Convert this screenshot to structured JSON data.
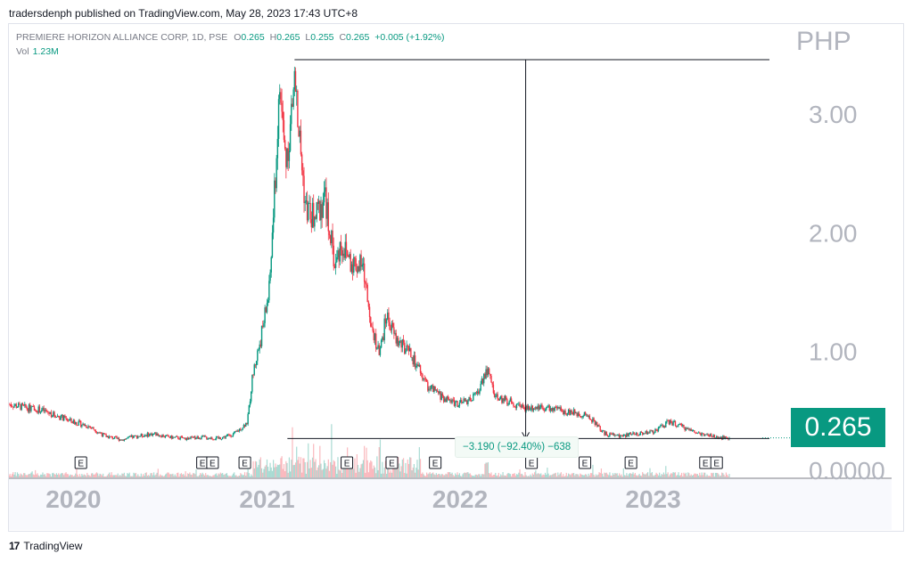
{
  "header": {
    "published_text": "tradersdenph published on TradingView.com, May 28, 2023 17:43 UTC+8"
  },
  "legend": {
    "symbol": "PREMIERE HORIZON ALLIANCE CORP, 1D, PSE",
    "open_key": "O",
    "open": "0.265",
    "high_key": "H",
    "high": "0.265",
    "low_key": "L",
    "low": "0.255",
    "close_key": "C",
    "close": "0.265",
    "change": "+0.005 (+1.92%)",
    "vol_key": "Vol",
    "vol": "1.23M"
  },
  "currency": "PHP",
  "last_price_tag": "0.265",
  "measure_label": "−3.190 (−92.40%) −638",
  "earnings_label": "E",
  "footer": {
    "brand": "TradingView",
    "logo_icon": "tradingview-logo-icon"
  },
  "colors": {
    "up": "#089981",
    "down": "#f23645",
    "axis_text": "#b2b5be",
    "price_tag_bg": "#089981"
  },
  "chart_data": {
    "type": "candlestick",
    "symbol": "PREMIERE HORIZON ALLIANCE CORP",
    "interval": "1D",
    "exchange": "PSE",
    "x_range": [
      "2019-09-01",
      "2023-09-15"
    ],
    "y_range": [
      0,
      3.6
    ],
    "y_ticks": [
      {
        "value": 3.0,
        "label": "3.00"
      },
      {
        "value": 2.0,
        "label": "2.00"
      },
      {
        "value": 1.0,
        "label": "1.00"
      },
      {
        "value": 0.0,
        "label": "0.0000"
      }
    ],
    "x_ticks": [
      {
        "date": "2020-01-01",
        "label": "2020"
      },
      {
        "date": "2021-01-01",
        "label": "2021"
      },
      {
        "date": "2022-01-01",
        "label": "2022"
      },
      {
        "date": "2023-01-01",
        "label": "2023"
      }
    ],
    "close_series": [
      [
        "2019-09-01",
        0.55
      ],
      [
        "2019-10-01",
        0.52
      ],
      [
        "2019-11-01",
        0.5
      ],
      [
        "2019-12-01",
        0.45
      ],
      [
        "2020-01-01",
        0.4
      ],
      [
        "2020-02-01",
        0.36
      ],
      [
        "2020-03-01",
        0.28
      ],
      [
        "2020-04-01",
        0.25
      ],
      [
        "2020-05-01",
        0.28
      ],
      [
        "2020-06-01",
        0.3
      ],
      [
        "2020-07-01",
        0.27
      ],
      [
        "2020-08-01",
        0.26
      ],
      [
        "2020-09-01",
        0.27
      ],
      [
        "2020-10-01",
        0.26
      ],
      [
        "2020-11-01",
        0.3
      ],
      [
        "2020-11-25",
        0.4
      ],
      [
        "2020-12-05",
        0.8
      ],
      [
        "2020-12-20",
        1.1
      ],
      [
        "2021-01-05",
        1.5
      ],
      [
        "2021-01-15",
        2.3
      ],
      [
        "2021-01-25",
        3.2
      ],
      [
        "2021-02-05",
        2.6
      ],
      [
        "2021-02-15",
        2.9
      ],
      [
        "2021-02-22",
        3.3
      ],
      [
        "2021-03-05",
        2.7
      ],
      [
        "2021-03-15",
        2.2
      ],
      [
        "2021-04-01",
        2.1
      ],
      [
        "2021-04-20",
        2.3
      ],
      [
        "2021-05-10",
        1.7
      ],
      [
        "2021-05-20",
        1.9
      ],
      [
        "2021-06-10",
        1.75
      ],
      [
        "2021-07-01",
        1.7
      ],
      [
        "2021-07-15",
        1.3
      ],
      [
        "2021-08-01",
        0.95
      ],
      [
        "2021-08-15",
        1.3
      ],
      [
        "2021-09-01",
        1.1
      ],
      [
        "2021-10-01",
        0.95
      ],
      [
        "2021-11-01",
        0.7
      ],
      [
        "2021-12-01",
        0.6
      ],
      [
        "2022-01-01",
        0.55
      ],
      [
        "2022-02-01",
        0.62
      ],
      [
        "2022-02-20",
        0.85
      ],
      [
        "2022-03-10",
        0.6
      ],
      [
        "2022-04-01",
        0.58
      ],
      [
        "2022-05-01",
        0.52
      ],
      [
        "2022-06-01",
        0.53
      ],
      [
        "2022-07-01",
        0.5
      ],
      [
        "2022-08-01",
        0.48
      ],
      [
        "2022-09-01",
        0.45
      ],
      [
        "2022-10-01",
        0.3
      ],
      [
        "2022-11-01",
        0.28
      ],
      [
        "2022-12-01",
        0.3
      ],
      [
        "2023-01-01",
        0.32
      ],
      [
        "2023-02-01",
        0.4
      ],
      [
        "2023-03-01",
        0.35
      ],
      [
        "2023-04-01",
        0.3
      ],
      [
        "2023-05-01",
        0.27
      ],
      [
        "2023-05-26",
        0.265
      ]
    ],
    "measure": {
      "from": {
        "date": "2021-02-22",
        "price": 3.45
      },
      "to": {
        "date": "2023-05-26",
        "price": 0.26
      },
      "vertical_at": "2022-05-05",
      "change": -3.19,
      "change_pct": -92.4,
      "bars": -638
    },
    "earnings_dates": [
      "2020-01-15",
      "2020-09-01",
      "2020-09-20",
      "2020-11-20",
      "2021-06-01",
      "2021-08-25",
      "2021-11-15",
      "2022-05-16",
      "2022-08-25",
      "2022-11-20",
      "2023-04-10",
      "2023-05-01"
    ],
    "last_price": 0.265
  }
}
